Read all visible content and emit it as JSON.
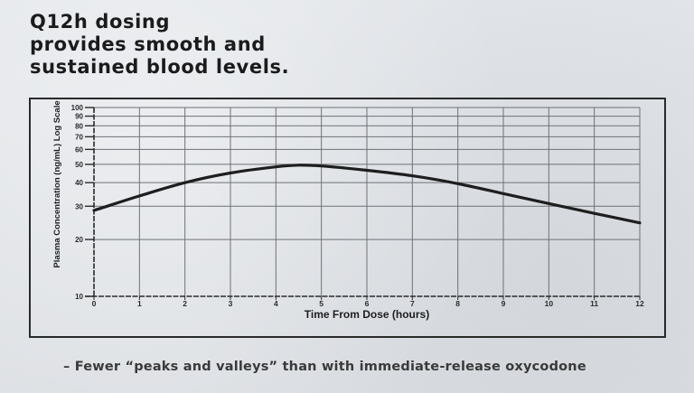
{
  "slide": {
    "title_lines": [
      "Q12h dosing",
      "provides smooth and",
      "sustained blood levels."
    ],
    "footnote": "– Fewer “peaks and valleys” than with immediate-release oxycodone"
  },
  "chart_data": {
    "type": "line",
    "title": "",
    "xlabel": "Time From Dose (hours)",
    "ylabel": "Plasma Concentration (ng/mL) Log Scale",
    "x_ticks": [
      "0",
      "1",
      "2",
      "3",
      "4",
      "5",
      "6",
      "7",
      "8",
      "9",
      "10",
      "11",
      "12"
    ],
    "y_ticks": [
      "10",
      "20",
      "30",
      "40",
      "50",
      "60",
      "70",
      "80",
      "90",
      "100"
    ],
    "y_scale": "log",
    "xlim": [
      0,
      12
    ],
    "ylim": [
      10,
      100
    ],
    "grid": true,
    "legend": "none",
    "series": [
      {
        "name": "Plasma concentration",
        "x": [
          0,
          1,
          2,
          3,
          4,
          4.5,
          5,
          6,
          7,
          8,
          9,
          10,
          11,
          12
        ],
        "values": [
          28.5,
          34,
          40,
          45,
          48.5,
          49.5,
          49,
          46.5,
          43.5,
          39.5,
          35,
          31,
          27.5,
          24.5
        ]
      }
    ]
  },
  "colors": {
    "background": "#dfe2e6",
    "text": "#1b1b1b",
    "gridline": "#6e7276",
    "curve": "#1e1e1e"
  }
}
